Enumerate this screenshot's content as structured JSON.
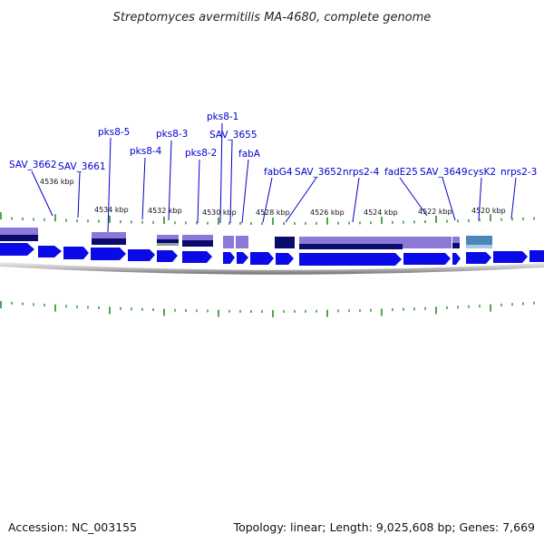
{
  "title": "Streptomyces avermitilis MA-4680, complete genome",
  "footer": {
    "accession": "Accession: NC_003155",
    "summary": "Topology: linear; Length: 9,025,608 bp; Genes: 7,669"
  },
  "colors": {
    "gene_label": "#0000cc",
    "leader": "#0000cc",
    "tick": "#2a8a2a",
    "arrow": "#0a0ae8",
    "backbone": "#777777",
    "block_light": "#8a79d6",
    "block_dark": "#0b0b6e",
    "block_teal": "#4a86b8"
  },
  "scale": {
    "unit": "kbp",
    "labels": [
      "4536 kbp",
      "4534 kbp",
      "4532 kbp",
      "4530 kbp",
      "4528 kbp",
      "4526 kbp",
      "4524 kbp",
      "4522 kbp",
      "4520 kbp"
    ]
  },
  "gene_labels": [
    "SAV_3662",
    "SAV_3661",
    "pks8-5",
    "pks8-4",
    "pks8-3",
    "pks8-2",
    "pks8-1",
    "SAV_3655",
    "fabA",
    "fabG4",
    "SAV_3652",
    "nrps2-4",
    "fadE25",
    "SAV_3649",
    "cysK2",
    "nrps2-3"
  ]
}
